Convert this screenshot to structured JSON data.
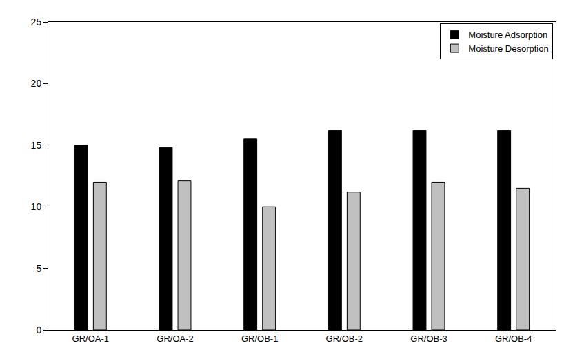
{
  "chart_data": {
    "type": "bar",
    "categories": [
      "GR/OA-1",
      "GR/OA-2",
      "GR/OB-1",
      "GR/OB-2",
      "GR/OB-3",
      "GR/OB-4"
    ],
    "series": [
      {
        "name": "Moisture Adsorption",
        "color": "#000000",
        "values": [
          15.0,
          14.8,
          15.5,
          16.2,
          16.2,
          16.2
        ]
      },
      {
        "name": "Moisture Desorption",
        "color": "#c0c0c0",
        "values": [
          12.0,
          12.1,
          10.0,
          11.2,
          12.0,
          11.5
        ]
      }
    ],
    "ylim": [
      0,
      25
    ],
    "yticks": [
      0,
      5,
      10,
      15,
      20,
      25
    ],
    "grid": false,
    "legend": "upper right"
  }
}
